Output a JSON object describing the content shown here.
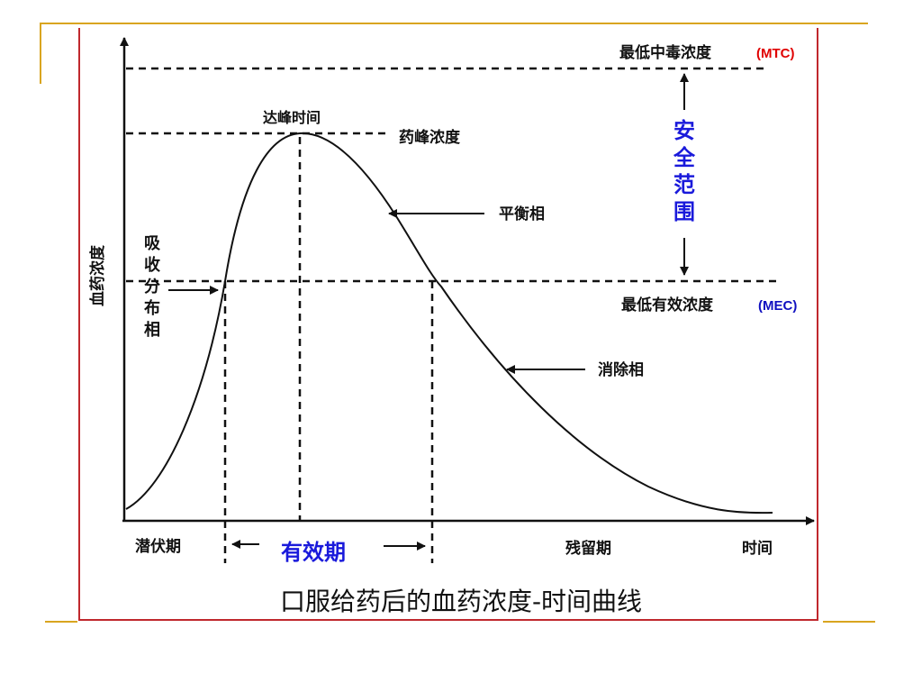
{
  "labels": {
    "mtc": "最低中毒浓度",
    "mtc_abbr": "(MTC)",
    "mec": "最低有效浓度",
    "mec_abbr": "(MEC)",
    "peak_time": "达峰时间",
    "peak_conc": "药峰浓度",
    "equilibrium_phase": "平衡相",
    "elimination_phase": "消除相",
    "absorption_phase": [
      "吸",
      "收",
      "分",
      "布",
      "相"
    ],
    "y_axis": "血药浓度",
    "safe_range": [
      "安",
      "全",
      "范",
      "围"
    ],
    "latent_period": "潜伏期",
    "effective_period": "有效期",
    "residual_period": "残留期",
    "time": "时间"
  },
  "caption": "口服给药后的血药浓度-时间曲线",
  "colors": {
    "abbr_mtc": "#e00000",
    "abbr_mec": "#1010c0",
    "emphasis_blue": "#1a1adb",
    "frame_red": "#c0282d",
    "decor_gold": "#d9a520",
    "ink": "#111111"
  },
  "icons": [
    "arrow-up-icon",
    "arrow-down-icon",
    "arrow-left-icon",
    "arrow-right-icon"
  ]
}
